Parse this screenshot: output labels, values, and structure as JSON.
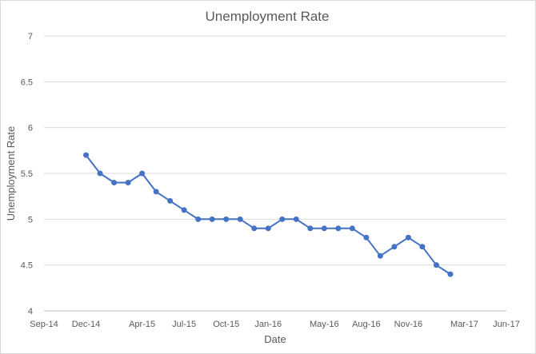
{
  "chart_data": {
    "type": "line",
    "title": "Unemployment Rate",
    "xlabel": "Date",
    "ylabel": "Unemployment Rate",
    "ylim": [
      4,
      7
    ],
    "y_ticks": [
      "4",
      "4.5",
      "5",
      "5.5",
      "6",
      "6.5",
      "7"
    ],
    "x_ticks": [
      "Sep-14",
      "Dec-14",
      "Apr-15",
      "Jul-15",
      "Oct-15",
      "Jan-16",
      "May-16",
      "Aug-16",
      "Nov-16",
      "Mar-17",
      "Jun-17"
    ],
    "xlim": [
      "2014-09",
      "2017-06"
    ],
    "grid": true,
    "legend": "none",
    "line_color": "#4472c4",
    "series": [
      {
        "x": [
          "2014-12",
          "2015-01",
          "2015-02",
          "2015-03",
          "2015-04",
          "2015-05",
          "2015-06",
          "2015-07",
          "2015-08",
          "2015-09",
          "2015-10",
          "2015-11",
          "2015-12",
          "2016-01",
          "2016-02",
          "2016-03",
          "2016-04",
          "2016-05",
          "2016-06",
          "2016-07",
          "2016-08",
          "2016-09",
          "2016-10",
          "2016-11",
          "2016-12",
          "2017-01",
          "2017-02",
          "2017-03"
        ],
        "values": [
          5.7,
          5.5,
          5.4,
          5.4,
          5.5,
          5.3,
          5.2,
          5.1,
          5.0,
          5.0,
          5.0,
          5.0,
          4.9,
          4.9,
          5.0,
          5.0,
          4.9,
          4.9,
          4.9,
          4.9,
          4.8,
          4.6,
          4.7,
          4.8,
          4.7,
          4.5,
          4.4,
          null
        ]
      }
    ]
  }
}
